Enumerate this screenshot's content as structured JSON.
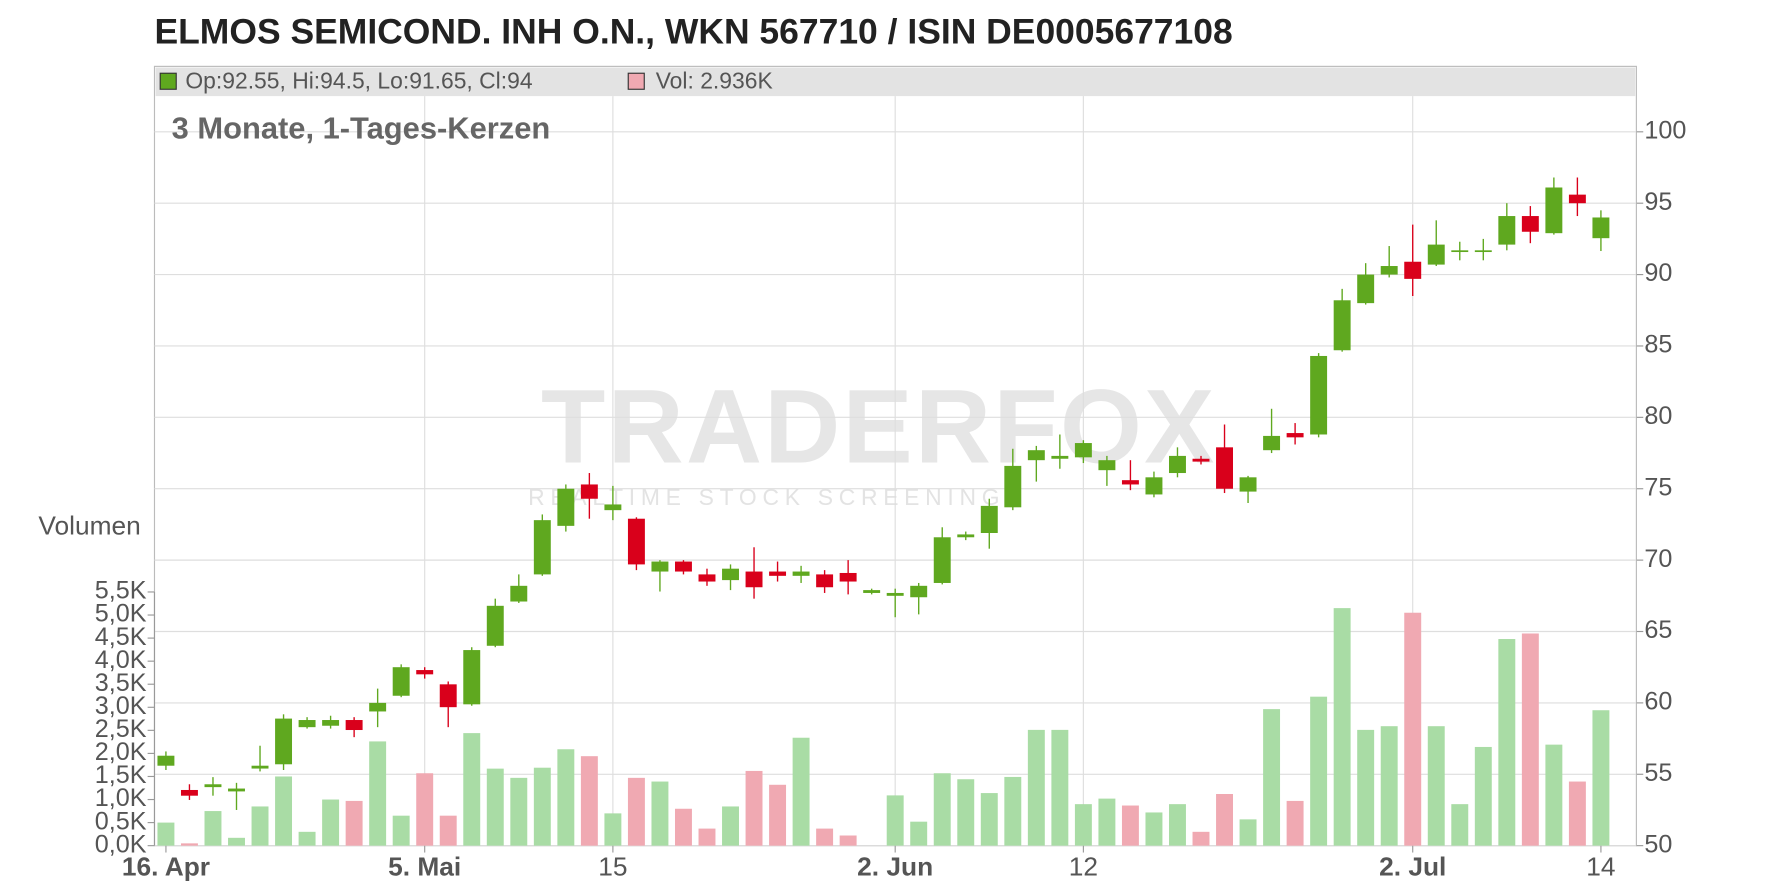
{
  "chart_data": {
    "type": "candlestick",
    "title": "ELMOS SEMICOND. INH O.N., WKN 567710 / ISIN DE0005677108",
    "subtitle": "3 Monate, 1-Tages-Kerzen",
    "legend": {
      "price": "Op:92.55, Hi:94.5, Lo:91.65, Cl:94",
      "volume": "Vol: 2.936K"
    },
    "y2_label": "Volumen",
    "watermark": {
      "logo": "TRADERFOX",
      "tagline": "REALTIME STOCK SCREENING"
    },
    "categories": [
      "16. Apr",
      null,
      null,
      null,
      null,
      null,
      null,
      null,
      null,
      null,
      null,
      "5. Mai",
      null,
      null,
      null,
      null,
      null,
      null,
      null,
      "15",
      null,
      null,
      null,
      null,
      null,
      null,
      null,
      null,
      null,
      null,
      null,
      "2. Jun",
      null,
      null,
      null,
      null,
      null,
      null,
      null,
      "12",
      null,
      null,
      null,
      null,
      null,
      null,
      null,
      null,
      null,
      null,
      null,
      null,
      null,
      "2. Jul",
      null,
      null,
      null,
      null,
      null,
      null,
      null,
      "14"
    ],
    "open": [
      55.6,
      53.9,
      54.1,
      53.8,
      55.4,
      55.7,
      58.3,
      58.4,
      58.8,
      59.4,
      60.5,
      62.3,
      61.3,
      59.9,
      64.0,
      67.1,
      69.0,
      72.4,
      75.3,
      73.5,
      72.9,
      69.2,
      69.9,
      69.0,
      68.6,
      69.2,
      69.2,
      68.9,
      69.0,
      69.1,
      67.7,
      67.5,
      67.4,
      68.4,
      71.6,
      71.9,
      73.7,
      77.0,
      77.1,
      77.2,
      76.3,
      75.6,
      74.6,
      76.1,
      77.1,
      77.9,
      74.8,
      77.7,
      78.9,
      78.8,
      84.7,
      88.0,
      90.0,
      90.9,
      90.7,
      91.6,
      91.6,
      92.1,
      94.1,
      92.9,
      95.6,
      92.55
    ],
    "high": [
      56.6,
      54.3,
      54.8,
      54.4,
      57.0,
      59.2,
      59.0,
      59.1,
      59.0,
      61.0,
      62.7,
      62.5,
      61.5,
      63.9,
      67.3,
      69.0,
      73.2,
      75.3,
      76.1,
      75.2,
      73.0,
      70.0,
      70.0,
      69.4,
      69.7,
      70.9,
      69.9,
      69.6,
      69.3,
      70.0,
      68.0,
      68.0,
      68.4,
      72.3,
      72.0,
      74.3,
      77.8,
      78.0,
      78.8,
      78.4,
      77.3,
      77.0,
      76.2,
      77.9,
      77.3,
      79.5,
      75.9,
      80.6,
      79.6,
      84.5,
      89.0,
      90.8,
      92.0,
      93.5,
      93.8,
      92.3,
      92.5,
      95.0,
      94.8,
      96.8,
      96.8,
      94.5
    ],
    "low": [
      55.3,
      53.2,
      53.5,
      52.5,
      55.2,
      55.3,
      58.2,
      58.2,
      57.6,
      58.3,
      60.4,
      61.7,
      58.3,
      59.8,
      63.9,
      67.0,
      68.9,
      72.0,
      72.9,
      72.8,
      69.3,
      67.8,
      69.0,
      68.2,
      67.9,
      67.3,
      68.5,
      68.4,
      67.7,
      67.6,
      67.6,
      66.0,
      66.2,
      68.3,
      71.4,
      70.8,
      73.5,
      75.5,
      76.4,
      76.8,
      75.2,
      74.9,
      74.4,
      75.8,
      76.7,
      74.7,
      74.0,
      77.5,
      78.1,
      78.6,
      84.6,
      87.9,
      89.8,
      88.5,
      90.6,
      91.0,
      91.0,
      91.7,
      92.2,
      92.8,
      94.1,
      91.65
    ],
    "close": [
      56.3,
      53.5,
      54.3,
      54.0,
      55.6,
      58.9,
      58.8,
      58.8,
      58.1,
      60.0,
      62.5,
      62.0,
      59.7,
      63.7,
      66.8,
      68.2,
      72.8,
      75.0,
      74.3,
      73.9,
      69.7,
      69.9,
      69.2,
      68.5,
      69.4,
      68.1,
      68.9,
      69.2,
      68.1,
      68.5,
      67.9,
      67.7,
      68.2,
      71.6,
      71.8,
      73.8,
      76.6,
      77.7,
      77.3,
      78.2,
      77.0,
      75.3,
      75.8,
      77.3,
      76.9,
      75.0,
      75.8,
      78.7,
      78.6,
      84.3,
      88.2,
      90.0,
      90.6,
      89.7,
      92.1,
      91.7,
      91.7,
      94.1,
      93.0,
      96.1,
      95.0,
      94
    ],
    "volume": [
      500,
      50,
      750,
      170,
      850,
      1500,
      300,
      1000,
      970,
      2260,
      650,
      1570,
      650,
      2440,
      1670,
      1470,
      1690,
      2090,
      1940,
      700,
      1470,
      1390,
      800,
      370,
      850,
      1620,
      1320,
      2340,
      370,
      220,
      0,
      1090,
      520,
      1570,
      1440,
      1140,
      1490,
      2510,
      2510,
      900,
      1020,
      870,
      720,
      900,
      300,
      1120,
      570,
      2960,
      970,
      3230,
      5150,
      2510,
      2590,
      5050,
      2590,
      900,
      2140,
      4480,
      4600,
      2190,
      1390,
      2936
    ],
    "colors": {
      "up": "#5fa81f",
      "down": "#d9001b",
      "volume_up": "#a9dca5",
      "volume_down": "#f0a9b2"
    },
    "ylim": [
      50,
      102.5
    ],
    "yticks": [
      50,
      55,
      60,
      65,
      70,
      75,
      80,
      85,
      90,
      95,
      100
    ],
    "y2lim": [
      0,
      16250
    ],
    "y2ticks": [
      {
        "value": 0,
        "label": "0,0K"
      },
      {
        "value": 500,
        "label": "0,5K"
      },
      {
        "value": 1000,
        "label": "1,0K"
      },
      {
        "value": 1500,
        "label": "1,5K"
      },
      {
        "value": 2000,
        "label": "2,0K"
      },
      {
        "value": 2500,
        "label": "2,5K"
      },
      {
        "value": 3000,
        "label": "3,0K"
      },
      {
        "value": 3500,
        "label": "3,5K"
      },
      {
        "value": 4000,
        "label": "4,0K"
      },
      {
        "value": 4500,
        "label": "4,5K"
      },
      {
        "value": 5000,
        "label": "5,0K"
      },
      {
        "value": 5500,
        "label": "5,5K"
      }
    ],
    "grid": true
  }
}
